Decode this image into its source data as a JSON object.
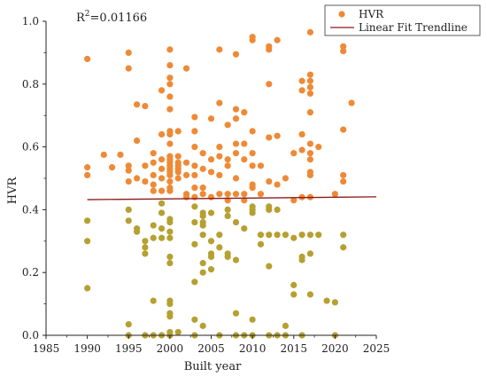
{
  "chart_data": {
    "type": "scatter",
    "xlabel": "Built year",
    "ylabel": "HVR",
    "xlim": [
      1985,
      2025
    ],
    "ylim": [
      0,
      1.0
    ],
    "x_ticks": [
      1985,
      1990,
      1995,
      2000,
      2005,
      2010,
      2015,
      2020,
      2025
    ],
    "y_ticks": [
      0.0,
      0.2,
      0.4,
      0.6,
      0.8,
      1.0
    ],
    "x_tick_labels": [
      "1985",
      "1990",
      "1995",
      "2000",
      "2005",
      "2010",
      "2015",
      "2020",
      "2025"
    ],
    "y_tick_labels": [
      "0.0",
      "0.2",
      "0.4",
      "0.6",
      "0.8",
      "1.0"
    ],
    "grid": false,
    "legend_position": "top-right",
    "annotation": {
      "r_symbol": "R",
      "r_superscript": "2",
      "r_value": "=0.01166"
    },
    "series": [
      {
        "name": "HVR",
        "color_high": "#EE8A36",
        "color_low": "#B5A031",
        "points": [
          [
            1990,
            0.88
          ],
          [
            1990,
            0.535
          ],
          [
            1990,
            0.51
          ],
          [
            1990,
            0.365
          ],
          [
            1990,
            0.3
          ],
          [
            1990,
            0.15
          ],
          [
            1992,
            0.575
          ],
          [
            1993,
            0.535
          ],
          [
            1994,
            0.575
          ],
          [
            1995,
            0.9
          ],
          [
            1995,
            0.85
          ],
          [
            1995,
            0.54
          ],
          [
            1995,
            0.525
          ],
          [
            1995,
            0.49
          ],
          [
            1995,
            0.4
          ],
          [
            1995,
            0.365
          ],
          [
            1995,
            0.035
          ],
          [
            1995,
            0.0
          ],
          [
            1996,
            0.735
          ],
          [
            1996,
            0.62
          ],
          [
            1996,
            0.5
          ],
          [
            1996,
            0.34
          ],
          [
            1996,
            0.33
          ],
          [
            1997,
            0.73
          ],
          [
            1997,
            0.54
          ],
          [
            1997,
            0.49
          ],
          [
            1997,
            0.3
          ],
          [
            1997,
            0.28
          ],
          [
            1997,
            0.26
          ],
          [
            1997,
            0.0
          ],
          [
            1998,
            0.58
          ],
          [
            1998,
            0.55
          ],
          [
            1998,
            0.51
          ],
          [
            1998,
            0.48
          ],
          [
            1998,
            0.46
          ],
          [
            1998,
            0.35
          ],
          [
            1998,
            0.31
          ],
          [
            1998,
            0.11
          ],
          [
            1998,
            0.0
          ],
          [
            1999,
            0.78
          ],
          [
            1999,
            0.64
          ],
          [
            1999,
            0.56
          ],
          [
            1999,
            0.53
          ],
          [
            1999,
            0.5
          ],
          [
            1999,
            0.46
          ],
          [
            1999,
            0.42
          ],
          [
            1999,
            0.39
          ],
          [
            1999,
            0.34
          ],
          [
            1999,
            0.31
          ],
          [
            1999,
            0.0
          ],
          [
            2000,
            0.91
          ],
          [
            2000,
            0.86
          ],
          [
            2000,
            0.82
          ],
          [
            2000,
            0.8
          ],
          [
            2000,
            0.76
          ],
          [
            2000,
            0.72
          ],
          [
            2000,
            0.65
          ],
          [
            2000,
            0.64
          ],
          [
            2000,
            0.61
          ],
          [
            2000,
            0.57
          ],
          [
            2000,
            0.56
          ],
          [
            2000,
            0.55
          ],
          [
            2000,
            0.54
          ],
          [
            2000,
            0.53
          ],
          [
            2000,
            0.52
          ],
          [
            2000,
            0.51
          ],
          [
            2000,
            0.49
          ],
          [
            2000,
            0.47
          ],
          [
            2000,
            0.46
          ],
          [
            2000,
            0.37
          ],
          [
            2000,
            0.36
          ],
          [
            2000,
            0.33
          ],
          [
            2000,
            0.31
          ],
          [
            2000,
            0.25
          ],
          [
            2000,
            0.23
          ],
          [
            2000,
            0.11
          ],
          [
            2000,
            0.1
          ],
          [
            2000,
            0.07
          ],
          [
            2000,
            0.06
          ],
          [
            2000,
            0.01
          ],
          [
            2000,
            0.0
          ],
          [
            2001,
            0.65
          ],
          [
            2001,
            0.57
          ],
          [
            2001,
            0.55
          ],
          [
            2001,
            0.54
          ],
          [
            2001,
            0.53
          ],
          [
            2001,
            0.52
          ],
          [
            2001,
            0.5
          ],
          [
            2001,
            0.01
          ],
          [
            2002,
            0.85
          ],
          [
            2002,
            0.55
          ],
          [
            2002,
            0.51
          ],
          [
            2002,
            0.45
          ],
          [
            2002,
            0.44
          ],
          [
            2003,
            0.695
          ],
          [
            2003,
            0.65
          ],
          [
            2003,
            0.6
          ],
          [
            2003,
            0.54
          ],
          [
            2003,
            0.51
          ],
          [
            2003,
            0.47
          ],
          [
            2003,
            0.44
          ],
          [
            2003,
            0.41
          ],
          [
            2003,
            0.36
          ],
          [
            2003,
            0.29
          ],
          [
            2003,
            0.17
          ],
          [
            2003,
            0.05
          ],
          [
            2003,
            0.0
          ],
          [
            2004,
            0.58
          ],
          [
            2004,
            0.53
          ],
          [
            2004,
            0.47
          ],
          [
            2004,
            0.45
          ],
          [
            2004,
            0.39
          ],
          [
            2004,
            0.38
          ],
          [
            2004,
            0.36
          ],
          [
            2004,
            0.35
          ],
          [
            2004,
            0.32
          ],
          [
            2004,
            0.23
          ],
          [
            2004,
            0.2
          ],
          [
            2004,
            0.03
          ],
          [
            2005,
            0.69
          ],
          [
            2005,
            0.56
          ],
          [
            2005,
            0.52
          ],
          [
            2005,
            0.44
          ],
          [
            2005,
            0.39
          ],
          [
            2005,
            0.3
          ],
          [
            2005,
            0.26
          ],
          [
            2005,
            0.25
          ],
          [
            2005,
            0.21
          ],
          [
            2006,
            0.91
          ],
          [
            2006,
            0.74
          ],
          [
            2006,
            0.6
          ],
          [
            2006,
            0.57
          ],
          [
            2006,
            0.51
          ],
          [
            2006,
            0.45
          ],
          [
            2006,
            0.32
          ],
          [
            2006,
            0.28
          ],
          [
            2006,
            0.0
          ],
          [
            2007,
            0.67
          ],
          [
            2007,
            0.56
          ],
          [
            2007,
            0.54
          ],
          [
            2007,
            0.45
          ],
          [
            2007,
            0.43
          ],
          [
            2007,
            0.4
          ],
          [
            2007,
            0.38
          ],
          [
            2007,
            0.26
          ],
          [
            2007,
            0.25
          ],
          [
            2008,
            0.895
          ],
          [
            2008,
            0.72
          ],
          [
            2008,
            0.69
          ],
          [
            2008,
            0.61
          ],
          [
            2008,
            0.58
          ],
          [
            2008,
            0.5
          ],
          [
            2008,
            0.45
          ],
          [
            2008,
            0.36
          ],
          [
            2008,
            0.24
          ],
          [
            2008,
            0.07
          ],
          [
            2008,
            0.0
          ],
          [
            2009,
            0.71
          ],
          [
            2009,
            0.61
          ],
          [
            2009,
            0.56
          ],
          [
            2009,
            0.45
          ],
          [
            2009,
            0.43
          ],
          [
            2009,
            0.34
          ],
          [
            2009,
            0.0
          ],
          [
            2010,
            0.95
          ],
          [
            2010,
            0.94
          ],
          [
            2010,
            0.65
          ],
          [
            2010,
            0.58
          ],
          [
            2010,
            0.54
          ],
          [
            2010,
            0.48
          ],
          [
            2010,
            0.47
          ],
          [
            2010,
            0.41
          ],
          [
            2010,
            0.4
          ],
          [
            2010,
            0.39
          ],
          [
            2010,
            0.05
          ],
          [
            2010,
            0.0
          ],
          [
            2011,
            0.54
          ],
          [
            2011,
            0.45
          ],
          [
            2011,
            0.32
          ],
          [
            2011,
            0.29
          ],
          [
            2012,
            0.92
          ],
          [
            2012,
            0.91
          ],
          [
            2012,
            0.8
          ],
          [
            2012,
            0.63
          ],
          [
            2012,
            0.49
          ],
          [
            2012,
            0.41
          ],
          [
            2012,
            0.4
          ],
          [
            2012,
            0.32
          ],
          [
            2012,
            0.22
          ],
          [
            2012,
            0.0
          ],
          [
            2013,
            0.94
          ],
          [
            2013,
            0.635
          ],
          [
            2013,
            0.48
          ],
          [
            2013,
            0.4
          ],
          [
            2013,
            0.32
          ],
          [
            2013,
            0.0
          ],
          [
            2014,
            0.5
          ],
          [
            2014,
            0.32
          ],
          [
            2014,
            0.03
          ],
          [
            2014,
            0.0
          ],
          [
            2015,
            0.58
          ],
          [
            2015,
            0.43
          ],
          [
            2015,
            0.31
          ],
          [
            2015,
            0.16
          ],
          [
            2015,
            0.13
          ],
          [
            2016,
            0.81
          ],
          [
            2016,
            0.78
          ],
          [
            2016,
            0.64
          ],
          [
            2016,
            0.59
          ],
          [
            2016,
            0.44
          ],
          [
            2016,
            0.32
          ],
          [
            2016,
            0.25
          ],
          [
            2016,
            0.24
          ],
          [
            2016,
            0.0
          ],
          [
            2017,
            0.965
          ],
          [
            2017,
            0.83
          ],
          [
            2017,
            0.81
          ],
          [
            2017,
            0.79
          ],
          [
            2017,
            0.77
          ],
          [
            2017,
            0.71
          ],
          [
            2017,
            0.61
          ],
          [
            2017,
            0.58
          ],
          [
            2017,
            0.56
          ],
          [
            2017,
            0.52
          ],
          [
            2017,
            0.51
          ],
          [
            2017,
            0.44
          ],
          [
            2017,
            0.32
          ],
          [
            2017,
            0.26
          ],
          [
            2017,
            0.13
          ],
          [
            2018,
            0.6
          ],
          [
            2018,
            0.32
          ],
          [
            2019,
            0.11
          ],
          [
            2020,
            0.45
          ],
          [
            2020,
            0.105
          ],
          [
            2020,
            0.0
          ],
          [
            2021,
            0.92
          ],
          [
            2021,
            0.905
          ],
          [
            2021,
            0.655
          ],
          [
            2021,
            0.51
          ],
          [
            2021,
            0.49
          ],
          [
            2021,
            0.32
          ],
          [
            2021,
            0.28
          ],
          [
            2022,
            0.74
          ]
        ]
      },
      {
        "name": "Linear Fit Trendline",
        "color": "#8B1A1A",
        "line": [
          [
            1990,
            0.432
          ],
          [
            2025,
            0.441
          ]
        ]
      }
    ]
  }
}
